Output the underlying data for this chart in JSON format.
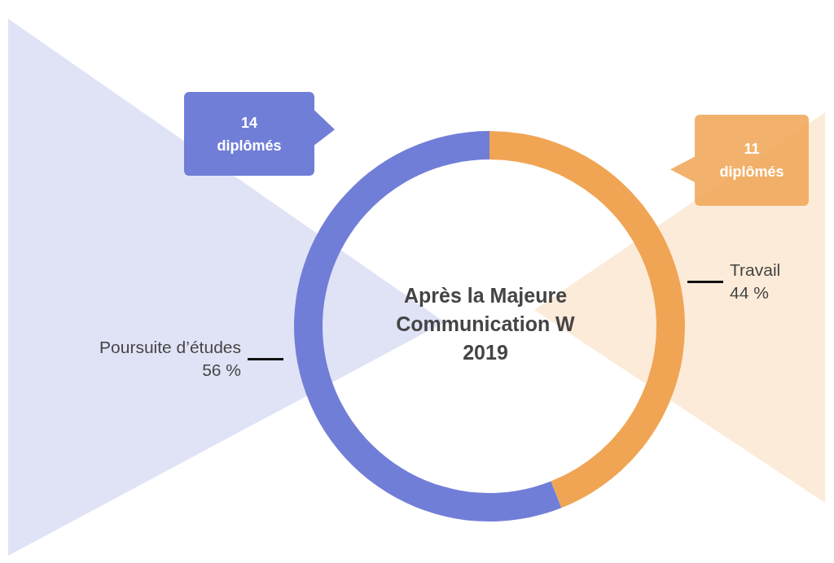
{
  "chart_data": {
    "type": "donut",
    "title": "Après la Majeure Communication W 2019",
    "categories": [
      "Travail",
      "Poursuite d’études"
    ],
    "values": [
      44,
      56
    ],
    "colors": [
      "#f0a554",
      "#717ed8"
    ],
    "value_labels": [
      "44 %",
      "56 %"
    ],
    "annotations": [
      "11 diplômés",
      "14 diplômés"
    ]
  }
}
